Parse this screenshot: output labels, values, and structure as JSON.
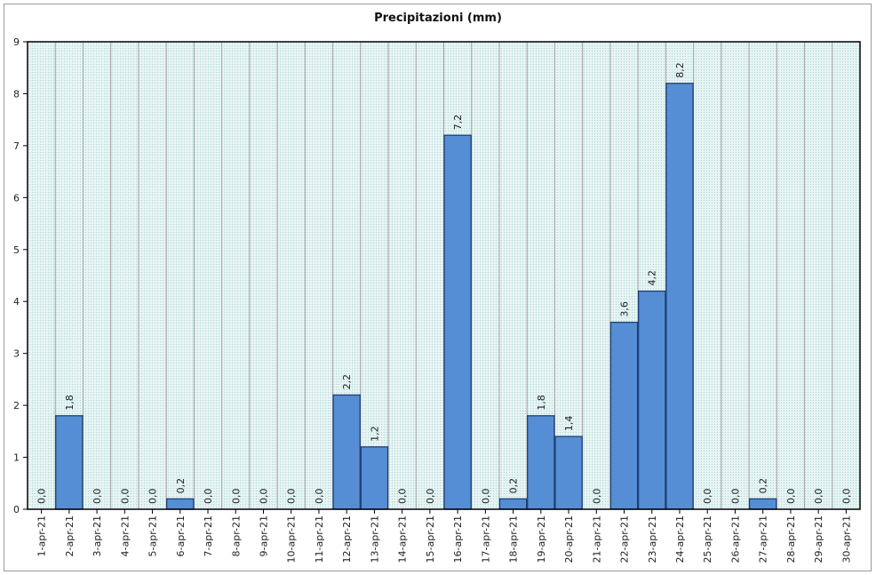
{
  "chart_data": {
    "type": "bar",
    "title": "Precipitazioni (mm)",
    "xlabel": "",
    "ylabel": "",
    "ylim": [
      0,
      9
    ],
    "yticks": [
      "0",
      "1",
      "2",
      "3",
      "4",
      "5",
      "6",
      "7",
      "8",
      "9"
    ],
    "grid": true,
    "categories": [
      "1-apr-21",
      "2-apr-21",
      "3-apr-21",
      "4-apr-21",
      "5-apr-21",
      "6-apr-21",
      "7-apr-21",
      "8-apr-21",
      "9-apr-21",
      "10-apr-21",
      "11-apr-21",
      "12-apr-21",
      "13-apr-21",
      "14-apr-21",
      "15-apr-21",
      "16-apr-21",
      "17-apr-21",
      "18-apr-21",
      "19-apr-21",
      "20-apr-21",
      "21-apr-21",
      "22-apr-21",
      "23-apr-21",
      "24-apr-21",
      "25-apr-21",
      "26-apr-21",
      "27-apr-21",
      "28-apr-21",
      "29-apr-21",
      "30-apr-21"
    ],
    "values": [
      0.0,
      1.8,
      0.0,
      0.0,
      0.0,
      0.2,
      0.0,
      0.0,
      0.0,
      0.0,
      0.0,
      2.2,
      1.2,
      0.0,
      0.0,
      7.2,
      0.0,
      0.2,
      1.8,
      1.4,
      0.0,
      3.6,
      4.2,
      8.2,
      0.0,
      0.0,
      0.2,
      0.0,
      0.0,
      0.0
    ],
    "data_labels": [
      "0,0",
      "1,8",
      "0,0",
      "0,0",
      "0,0",
      "0,2",
      "0,0",
      "0,0",
      "0,0",
      "0,0",
      "0,0",
      "2,2",
      "1,2",
      "0,0",
      "0,0",
      "7,2",
      "0,0",
      "0,2",
      "1,8",
      "1,4",
      "0,0",
      "3,6",
      "4,2",
      "8,2",
      "0,0",
      "0,0",
      "0,2",
      "0,0",
      "0,0",
      "0,0"
    ],
    "colors": {
      "bar_fill": "#558ed5",
      "bar_stroke": "#1f3f73",
      "plot_bg": "#dcefef",
      "plot_border": "#000000",
      "gridline": "#a0a0a0"
    }
  }
}
